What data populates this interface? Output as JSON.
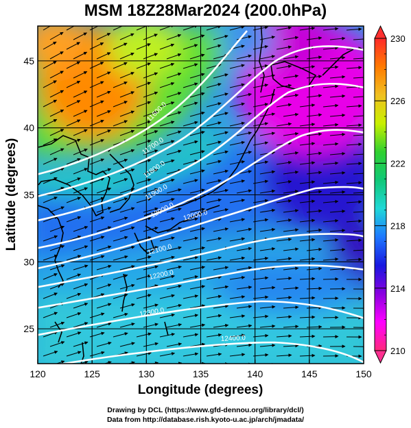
{
  "title": "MSM 18Z28Mar2024 (200.0hPa)",
  "xlabel": "Longitude (degrees)",
  "ylabel": "Latitude  (degrees)",
  "x_ticks": [
    "120",
    "125",
    "130",
    "135",
    "140",
    "145",
    "150"
  ],
  "y_ticks": [
    "25",
    "30",
    "35",
    "40",
    "45"
  ],
  "colorbar": {
    "ticks": [
      "230",
      "226",
      "222",
      "218",
      "214",
      "210"
    ],
    "range": [
      210,
      230
    ],
    "colors": [
      "#ff2a7a",
      "#ff00ff",
      "#8a00e0",
      "#1818e0",
      "#1e78ff",
      "#20d8d8",
      "#10c878",
      "#30d030",
      "#c8f000",
      "#f0c020",
      "#ff7a00",
      "#ff2a2a"
    ]
  },
  "contour_labels": [
    "11600.0",
    "11700.0",
    "11800.0",
    "11900.0",
    "12000.0",
    "12000.0",
    "12100.0",
    "12200.0",
    "12300.0",
    "12400.0"
  ],
  "footer": {
    "line1": "Drawing by DCL (https://www.gfd-dennou.org/library/dcl/)",
    "line2": "Data from http://database.rish.kyoto-u.ac.jp/arch/jmadata/"
  },
  "chart_data": {
    "type": "heatmap",
    "title": "MSM 18Z28Mar2024 (200.0hPa)",
    "xlabel": "Longitude (degrees)",
    "ylabel": "Latitude  (degrees)",
    "xlim": [
      120,
      150
    ],
    "ylim": [
      22.4,
      47.6
    ],
    "x_ticks": [
      120,
      125,
      130,
      135,
      140,
      145,
      150
    ],
    "y_ticks": [
      25,
      30,
      35,
      40,
      45
    ],
    "color_range": [
      210,
      230
    ],
    "colorbar_ticks": [
      230,
      226,
      222,
      218,
      214,
      210
    ],
    "contour_labels": [
      11600,
      11700,
      11800,
      11900,
      12000,
      12000,
      12100,
      12200,
      12300,
      12400
    ],
    "vectors": "westerly wind arrows across domain",
    "grid": true
  }
}
